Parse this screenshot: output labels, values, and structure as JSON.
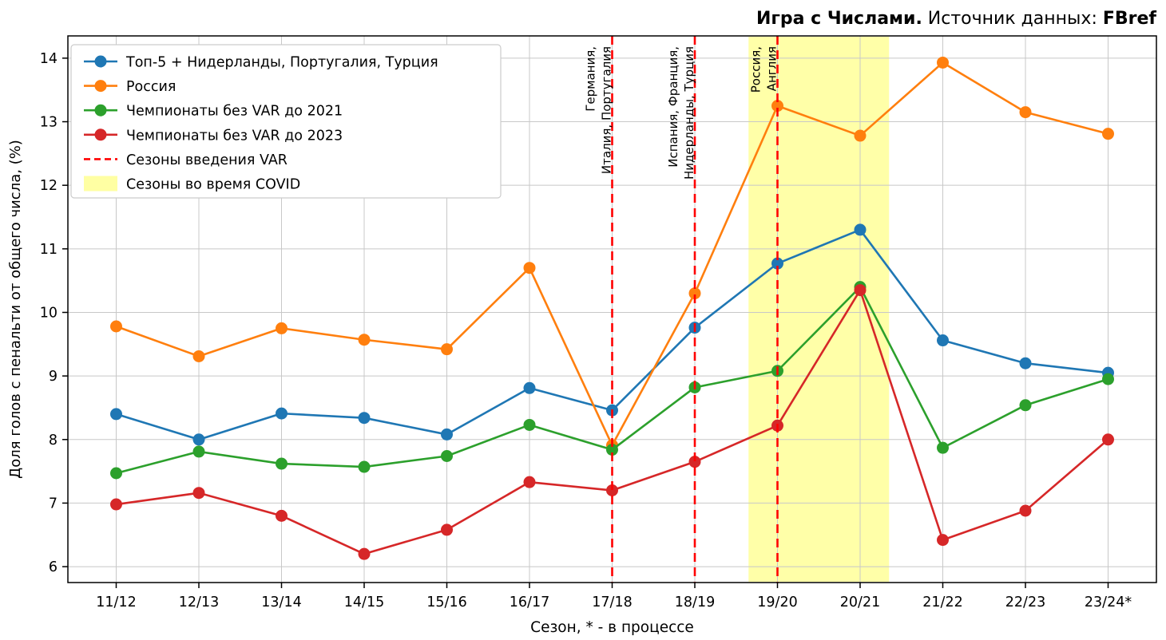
{
  "header": {
    "title_bold": "Игра с Числами.",
    "title_normal": " Источник данных: ",
    "source_bold": "FBref"
  },
  "chart_data": {
    "type": "line",
    "title": "Игра с Числами. Источник данных: FBref",
    "xlabel": "Сезон, * - в процессе",
    "ylabel": "Доля голов с пенальти от общего числа, (%)",
    "categories": [
      "11/12",
      "12/13",
      "13/14",
      "14/15",
      "15/16",
      "16/17",
      "17/18",
      "18/19",
      "19/20",
      "20/21",
      "21/22",
      "22/23",
      "23/24*"
    ],
    "ylim": [
      5.75,
      14.35
    ],
    "yticks": [
      6,
      7,
      8,
      9,
      10,
      11,
      12,
      13,
      14
    ],
    "grid": true,
    "legend_position": "upper-left",
    "series": [
      {
        "name": "Топ-5 + Нидерланды, Португалия, Турция",
        "color": "#1f77b4",
        "values": [
          8.4,
          8.0,
          8.41,
          8.34,
          8.08,
          8.81,
          8.46,
          9.76,
          10.77,
          11.3,
          9.56,
          9.2,
          9.05
        ]
      },
      {
        "name": "Россия",
        "color": "#ff7f0e",
        "values": [
          9.78,
          9.31,
          9.75,
          9.57,
          9.42,
          10.7,
          7.91,
          10.3,
          13.25,
          12.78,
          13.93,
          13.15,
          12.81
        ]
      },
      {
        "name": "Чемпионаты без VAR до 2021",
        "color": "#2ca02c",
        "values": [
          7.47,
          7.81,
          7.62,
          7.57,
          7.74,
          8.23,
          7.84,
          8.82,
          9.08,
          10.4,
          7.87,
          8.54,
          8.95
        ]
      },
      {
        "name": "Чемпионаты без VAR до 2023",
        "color": "#d62728",
        "values": [
          6.98,
          7.16,
          6.8,
          6.2,
          6.58,
          7.33,
          7.2,
          7.65,
          8.22,
          10.35,
          6.42,
          6.88,
          8.0
        ]
      }
    ],
    "legend_extra": [
      {
        "name": "Сезоны введения VAR",
        "kind": "dashed",
        "color": "#ff0000"
      },
      {
        "name": "Сезоны во время COVID",
        "kind": "patch",
        "color": "#ffff99"
      }
    ],
    "var_lines": [
      {
        "season": "17/18",
        "color": "#ff0000",
        "labels": [
          "Германия,",
          "Италия, Португалия"
        ]
      },
      {
        "season": "18/19",
        "color": "#ff0000",
        "labels": [
          "Испания, Франция,",
          "Нидерланды, Турция"
        ]
      },
      {
        "season": "19/20",
        "color": "#ff0000",
        "labels": [
          "Россия,",
          "Англия"
        ]
      }
    ],
    "covid_band": {
      "from_season": "19/20",
      "to_season": "20/21",
      "pad": 0.35,
      "color": "#ffff99"
    }
  }
}
